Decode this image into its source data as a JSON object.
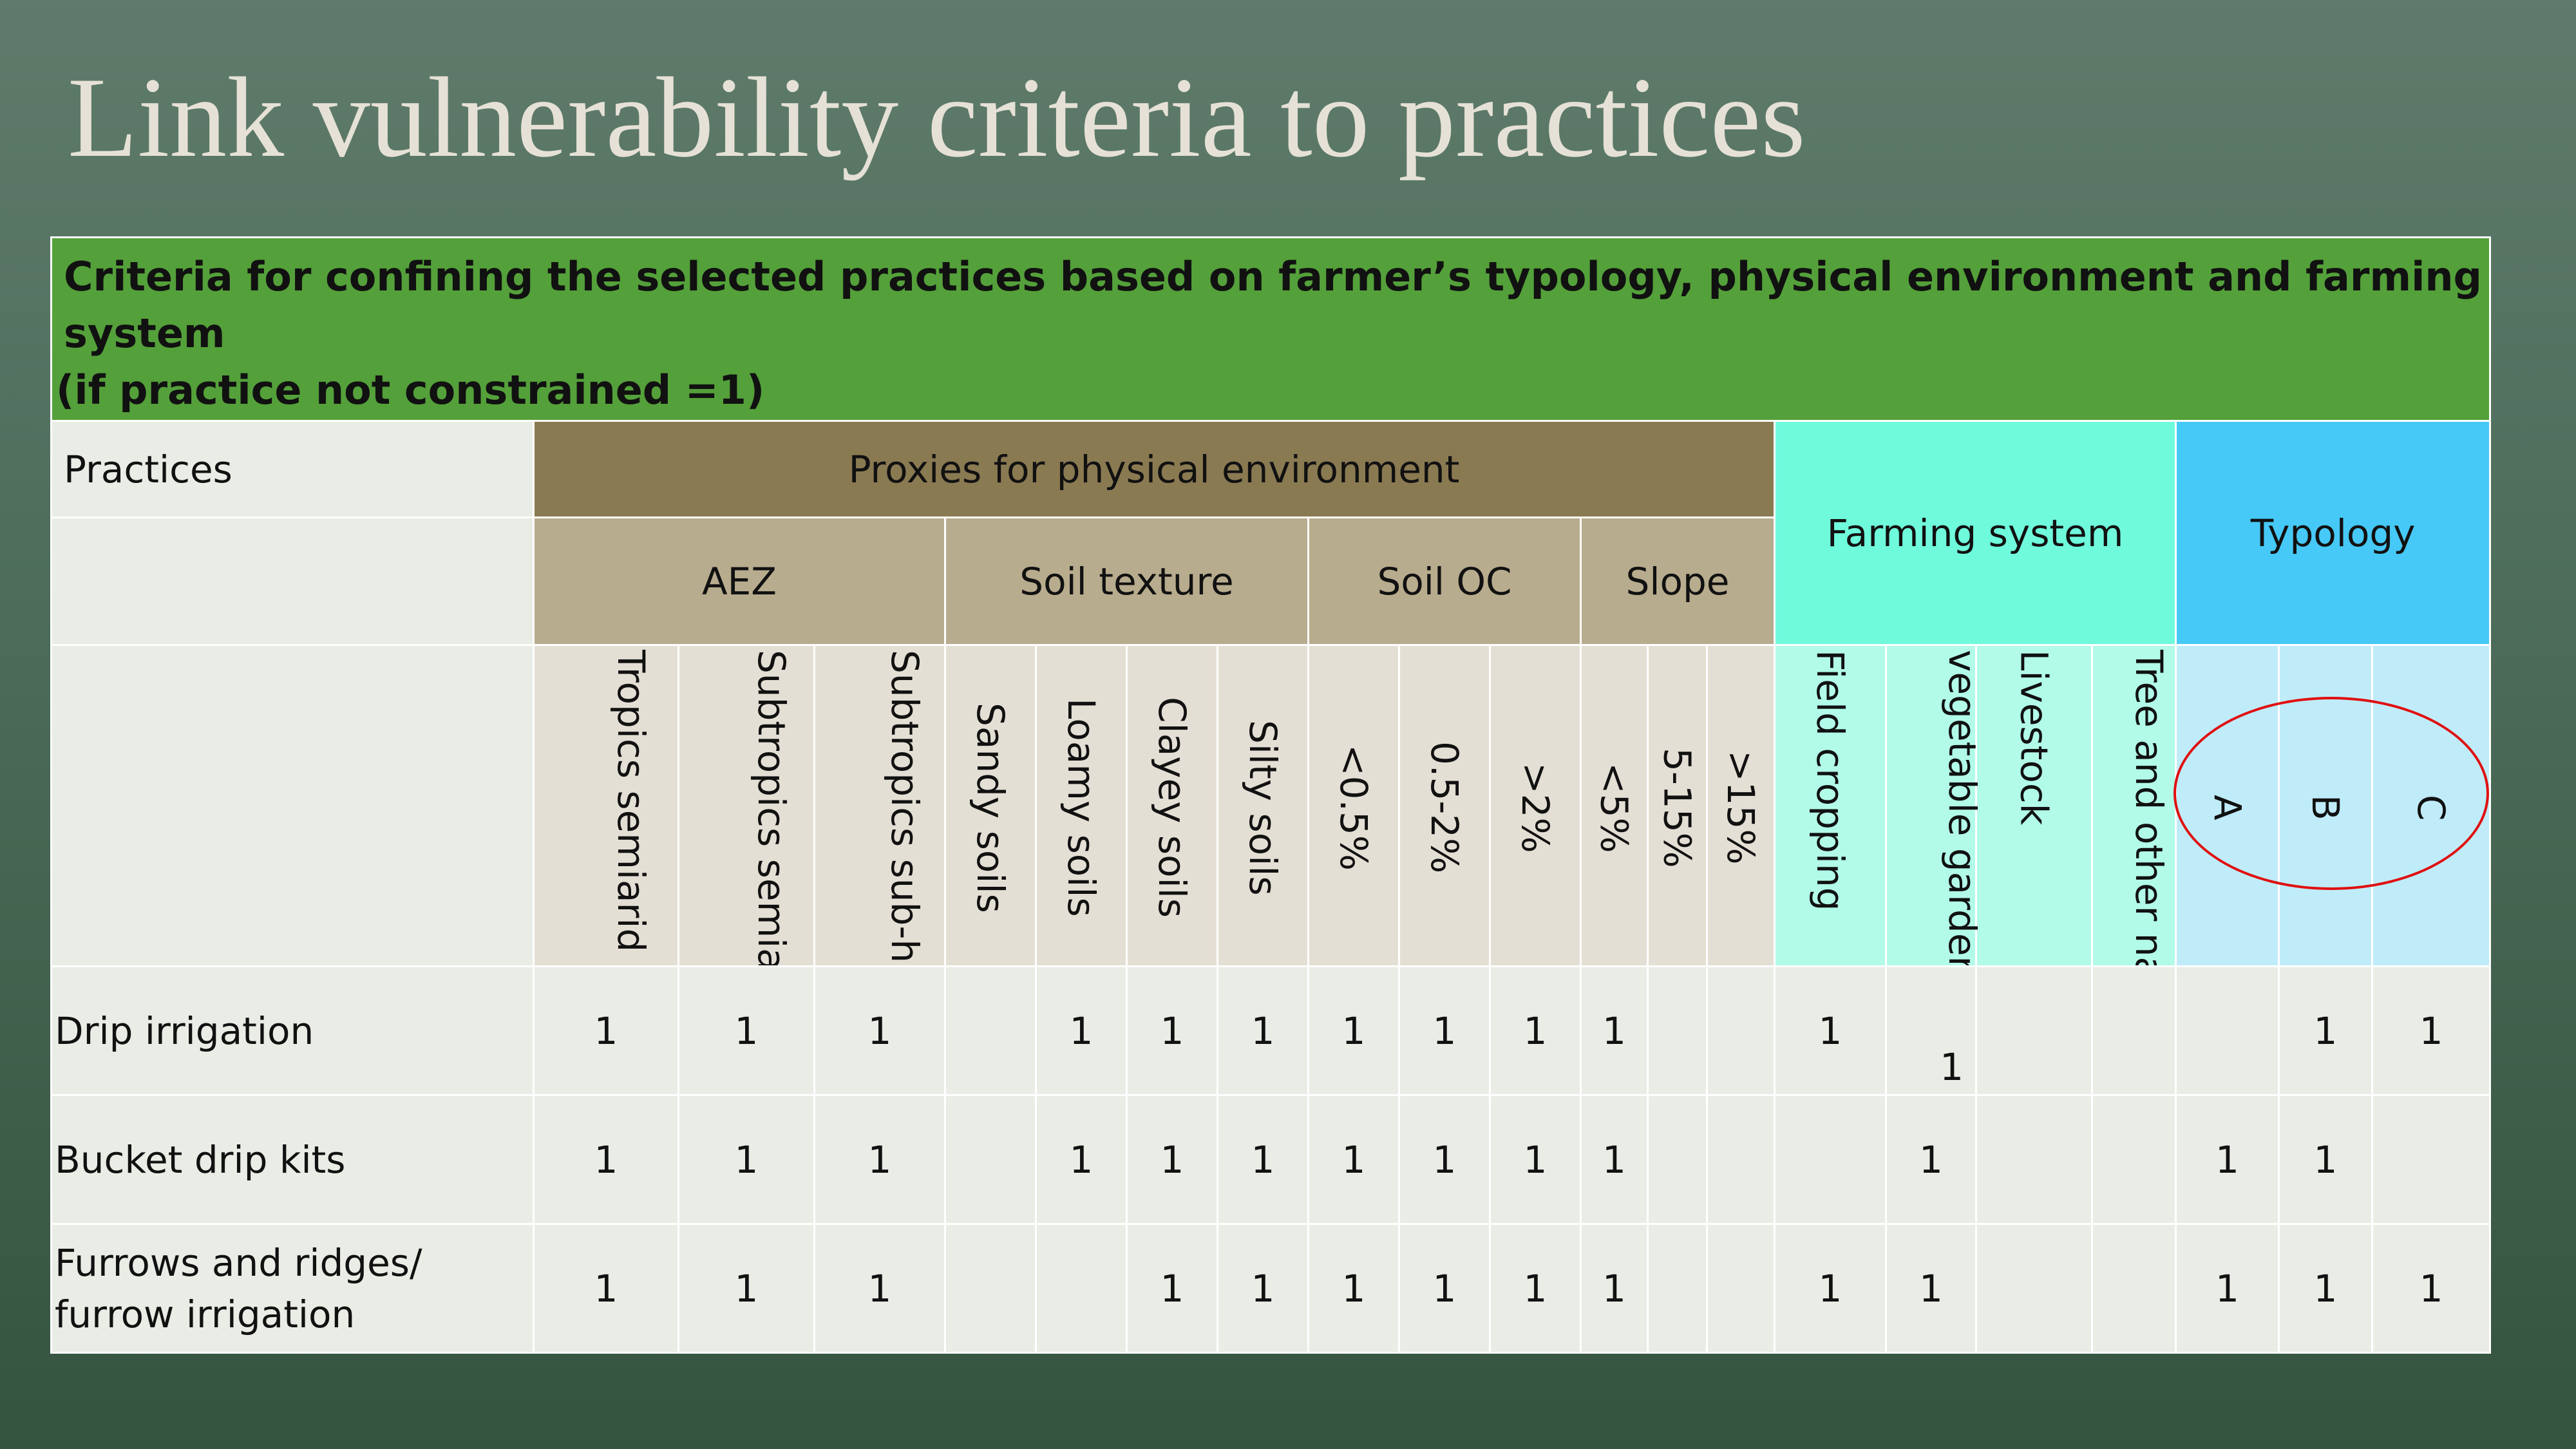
{
  "slide": {
    "title": "Link vulnerability criteria to practices"
  },
  "table": {
    "banner_line1": "Criteria for confining the selected practices based on farmer’s typology, physical environment and farming system",
    "banner_line2": "(if practice not constrained =1)",
    "practices_header": "Practices",
    "physical_header": "Proxies for physical environment",
    "farming_header": "Farming system",
    "typology_header": "Typology",
    "groups": {
      "aez": "AEZ",
      "soil_texture": "Soil texture",
      "soil_oc": "Soil OC",
      "slope": "Slope"
    },
    "subcolumns": [
      "Tropics semiarid warm",
      "Subtropics semiarid warm",
      "Subtropics sub-humid cool",
      "Sandy soils",
      "Loamy soils",
      "Clayey soils",
      "Silty soils",
      "<0.5%",
      "0.5-2%",
      ">2%",
      "<5%",
      "5-15%",
      ">15%",
      "Field cropping",
      "vegetable gardening",
      "Livestock",
      "Tree and other nat. resources",
      "A",
      "B",
      "C"
    ],
    "rows": [
      {
        "practice": "Drip irrigation",
        "values": [
          "1",
          "1",
          "1",
          "",
          "1",
          "1",
          "1",
          "1",
          "1",
          "1",
          "1",
          "",
          "",
          "1",
          "1",
          "",
          "",
          "",
          "1",
          "1"
        ]
      },
      {
        "practice": "Bucket drip kits",
        "values": [
          "1",
          "1",
          "1",
          "",
          "1",
          "1",
          "1",
          "1",
          "1",
          "1",
          "1",
          "",
          "",
          "",
          "1",
          "",
          "",
          "1",
          "1",
          ""
        ]
      },
      {
        "practice": "Furrows and ridges/ furrow irrigation",
        "values": [
          "1",
          "1",
          "1",
          "",
          "",
          "1",
          "1",
          "1",
          "1",
          "1",
          "1",
          "",
          "",
          "1",
          "1",
          "",
          "",
          "1",
          "1",
          "1"
        ]
      }
    ]
  },
  "colors": {
    "banner": "#54a03a",
    "physical_header": "#8a7a52",
    "group_header": "#b8ac8e",
    "farming_system": "#6ffadc",
    "typology": "#46c9f6",
    "highlight_circle": "#e01010"
  }
}
